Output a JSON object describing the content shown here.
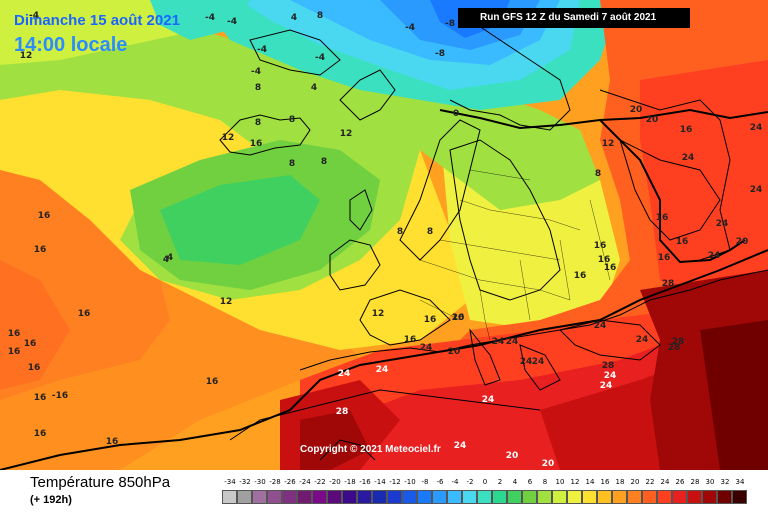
{
  "header": {
    "date_line": "Dimanche 15 août 2021",
    "time_line": "14:00 locale",
    "run_label": "Run GFS 12 Z du Samedi 7 août 2021"
  },
  "copyright": "Copyright © 2021 Meteociel.fr",
  "footer": {
    "variable_title": "Température 850hPa",
    "forecast_horizon": "(+ 192h)"
  },
  "legend": {
    "ticks": [
      "-34",
      "-32",
      "-30",
      "-28",
      "-26",
      "-24",
      "-22",
      "-20",
      "-18",
      "-16",
      "-14",
      "-12",
      "-10",
      "-8",
      "-6",
      "-4",
      "-2",
      "0",
      "2",
      "4",
      "6",
      "8",
      "10",
      "12",
      "14",
      "16",
      "18",
      "20",
      "22",
      "24",
      "26",
      "28",
      "30",
      "32",
      "34"
    ],
    "colors": [
      "#c8c8c8",
      "#a0a0a0",
      "#a070a0",
      "#905090",
      "#803080",
      "#701a70",
      "#7a0a8a",
      "#5a0a7a",
      "#3a0a8a",
      "#2a1aa0",
      "#1a2ab0",
      "#1a3ad0",
      "#1a5ae8",
      "#1a7aff",
      "#2a9aff",
      "#3abaff",
      "#4ad8f0",
      "#3ae0c0",
      "#2ad890",
      "#40d060",
      "#70d040",
      "#a0e040",
      "#d0f040",
      "#f0f040",
      "#ffe030",
      "#ffc020",
      "#ffa020",
      "#ff8020",
      "#ff6020",
      "#ff4020",
      "#e82020",
      "#c81010",
      "#a00808",
      "#700000",
      "#3a0000"
    ]
  },
  "map_labels": [
    {
      "t": "-4"
    },
    {
      "t": "-4"
    },
    {
      "t": "4"
    },
    {
      "t": "8"
    },
    {
      "t": "-4"
    },
    {
      "t": "-4"
    },
    {
      "t": "8"
    },
    {
      "t": "-4"
    },
    {
      "t": "-8"
    },
    {
      "t": "-8"
    },
    {
      "t": "-4"
    },
    {
      "t": "0"
    },
    {
      "t": "12"
    },
    {
      "t": "-4"
    },
    {
      "t": "4"
    },
    {
      "t": "16"
    },
    {
      "t": "20"
    },
    {
      "t": "20"
    },
    {
      "t": "16"
    },
    {
      "t": "24"
    },
    {
      "t": "24"
    },
    {
      "t": "24"
    },
    {
      "t": "12"
    },
    {
      "t": "8"
    },
    {
      "t": "8"
    },
    {
      "t": "8"
    },
    {
      "t": "12"
    },
    {
      "t": "12"
    },
    {
      "t": "4"
    },
    {
      "t": "16"
    },
    {
      "t": "16"
    },
    {
      "t": "24"
    },
    {
      "t": "20"
    },
    {
      "t": "16"
    },
    {
      "t": "16"
    },
    {
      "t": "24"
    },
    {
      "t": "16"
    },
    {
      "t": "16"
    },
    {
      "t": "16"
    },
    {
      "t": "28"
    },
    {
      "t": "4"
    },
    {
      "t": "8"
    },
    {
      "t": "8"
    },
    {
      "t": "8"
    },
    {
      "t": "8"
    },
    {
      "t": "16"
    },
    {
      "t": "16"
    },
    {
      "t": "12"
    },
    {
      "t": "16"
    },
    {
      "t": "20"
    },
    {
      "t": "24"
    },
    {
      "t": "20"
    },
    {
      "t": "24"
    },
    {
      "t": "24"
    },
    {
      "t": "24"
    },
    {
      "t": "24"
    },
    {
      "t": "28"
    },
    {
      "t": "28"
    },
    {
      "t": "24"
    },
    {
      "t": "28"
    },
    {
      "t": "24"
    },
    {
      "t": "24"
    },
    {
      "t": "16"
    },
    {
      "t": "16"
    },
    {
      "t": "16"
    },
    {
      "t": "16"
    },
    {
      "t": "16"
    },
    {
      "t": "16"
    },
    {
      "t": "16"
    },
    {
      "t": "16"
    },
    {
      "t": "24"
    },
    {
      "t": "24"
    },
    {
      "t": "28"
    },
    {
      "t": "24"
    },
    {
      "t": "24"
    },
    {
      "t": "20"
    },
    {
      "t": "20"
    },
    {
      "t": "24"
    },
    {
      "t": "16"
    },
    {
      "t": "16"
    },
    {
      "t": "-16"
    },
    {
      "t": "16"
    },
    {
      "t": "12"
    }
  ]
}
